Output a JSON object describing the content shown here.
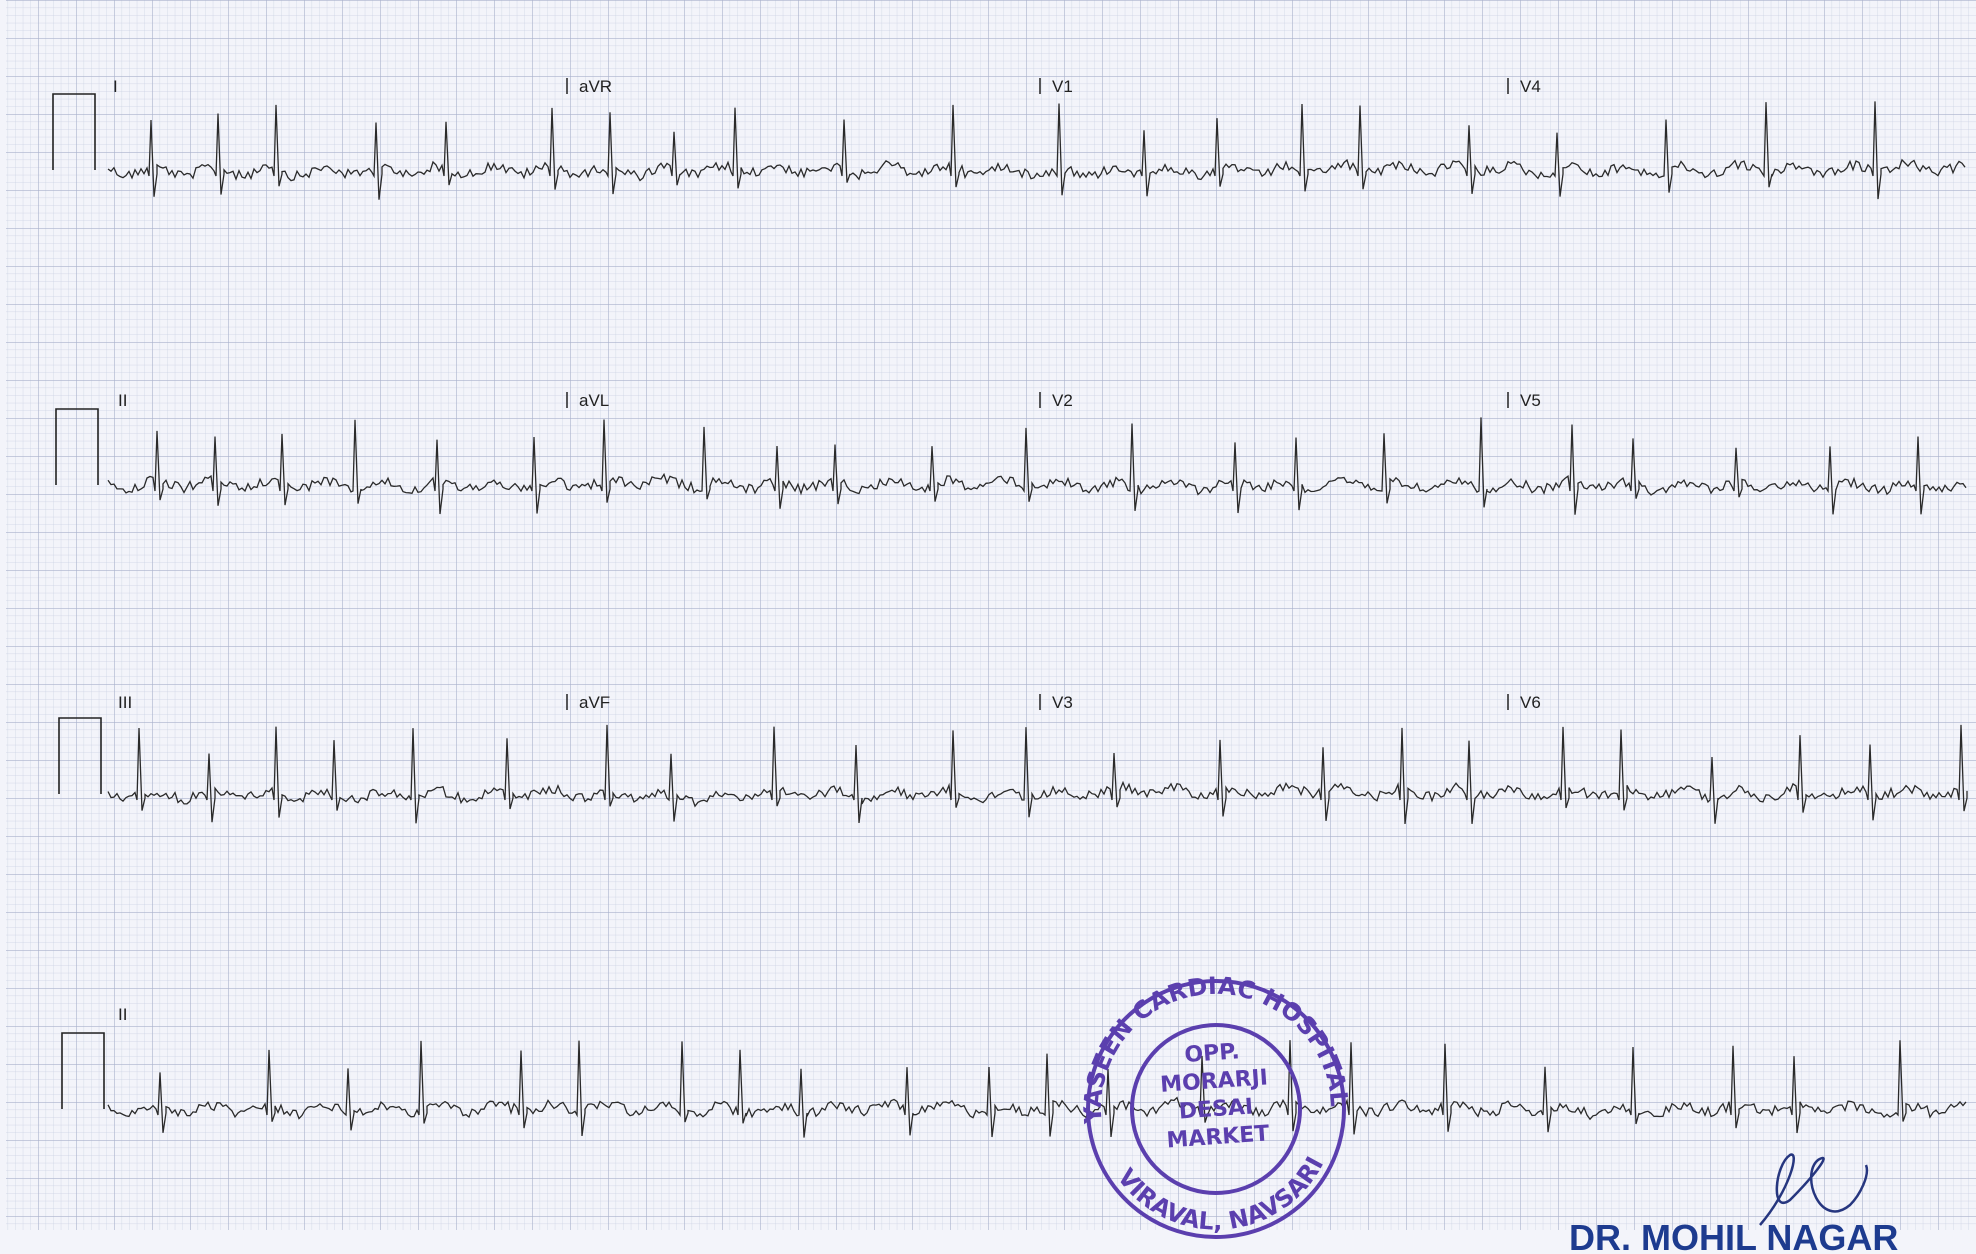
{
  "rows": [
    [
      "I",
      "aVR",
      "V1",
      "V4"
    ],
    [
      "II",
      "aVL",
      "V2",
      "V5"
    ],
    [
      "III",
      "aVF",
      "V3",
      "V6"
    ],
    [
      "II"
    ]
  ],
  "stamp": {
    "ring_top": "YASEEN CARDIAC HOSPITAL",
    "ring_bottom": "VIRAVAL, NAVSARI",
    "center": [
      "OPP.",
      "MORARJI",
      "DESAI",
      "MARKET"
    ]
  },
  "signature": "DR. MOHIL NAGAR"
}
